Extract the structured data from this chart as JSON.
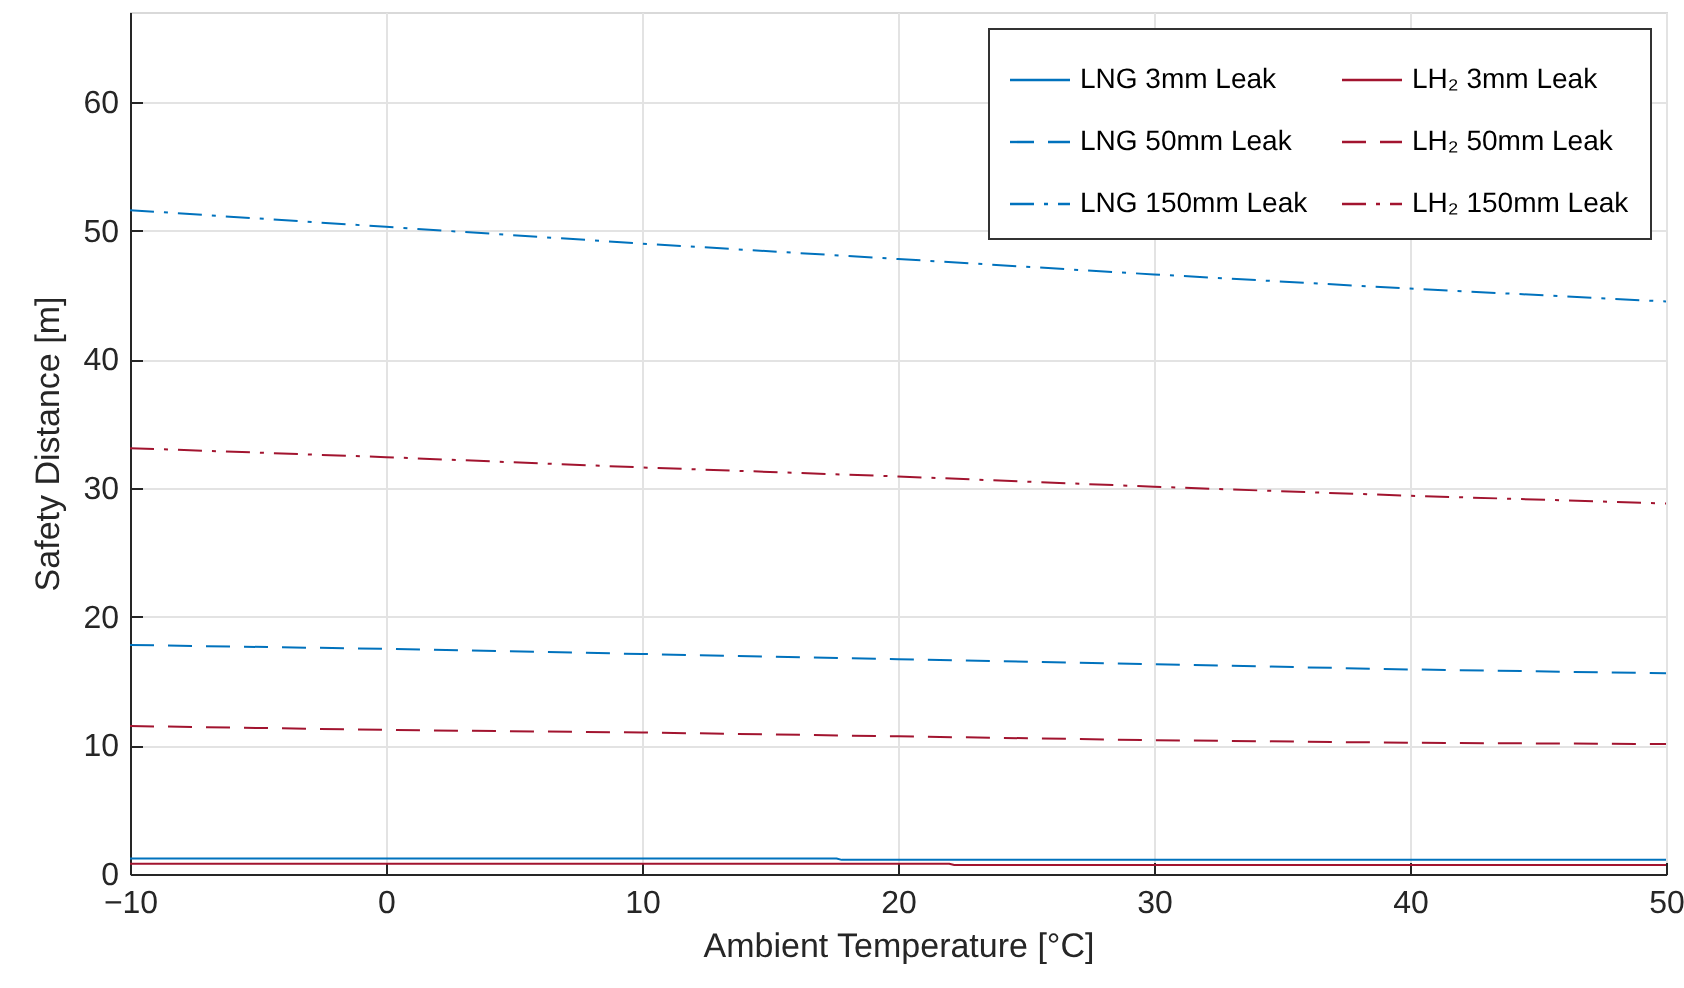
{
  "chart_data": {
    "type": "line",
    "xlabel": "Ambient Temperature [°C]",
    "ylabel": "Safety Distance [m]",
    "xlim": [
      -10,
      50
    ],
    "ylim": [
      0,
      67
    ],
    "xticks": [
      -10,
      0,
      10,
      20,
      30,
      40,
      50
    ],
    "yticks": [
      0,
      10,
      20,
      30,
      40,
      50,
      60
    ],
    "grid": true,
    "legend": "top right",
    "marker": "none",
    "series": [
      {
        "name": "LNG 3mm Leak",
        "color": "#0072bd",
        "line_style": "solid",
        "x": [
          -10,
          17.6,
          17.8,
          50
        ],
        "values": [
          1.2,
          1.2,
          1.1,
          1.1
        ]
      },
      {
        "name": "LNG 50mm Leak",
        "color": "#0072bd",
        "line_style": "dashed",
        "x": [
          -10,
          0,
          10,
          20,
          30,
          40,
          50
        ],
        "values": [
          17.8,
          17.5,
          17.1,
          16.7,
          16.3,
          15.9,
          15.6
        ]
      },
      {
        "name": "LNG 150mm Leak",
        "color": "#0072bd",
        "line_style": "dashdot",
        "x": [
          -10,
          0,
          10,
          20,
          30,
          40,
          50
        ],
        "values": [
          51.6,
          50.3,
          49.0,
          47.8,
          46.6,
          45.5,
          44.5
        ]
      },
      {
        "name": "LH₂ 3mm Leak",
        "color": "#a2142f",
        "line_style": "solid",
        "x": [
          -10,
          22,
          22.2,
          50
        ],
        "values": [
          0.8,
          0.8,
          0.7,
          0.7
        ]
      },
      {
        "name": "LH₂ 50mm Leak",
        "color": "#a2142f",
        "line_style": "dashed",
        "x": [
          -10,
          0,
          10,
          20,
          30,
          40,
          50
        ],
        "values": [
          11.5,
          11.2,
          11.0,
          10.7,
          10.4,
          10.2,
          10.1
        ]
      },
      {
        "name": "LH₂ 150mm Leak",
        "color": "#a2142f",
        "line_style": "dashdot",
        "x": [
          -10,
          0,
          10,
          20,
          30,
          40,
          50
        ],
        "values": [
          33.1,
          32.4,
          31.6,
          30.9,
          30.1,
          29.4,
          28.8
        ]
      }
    ]
  }
}
